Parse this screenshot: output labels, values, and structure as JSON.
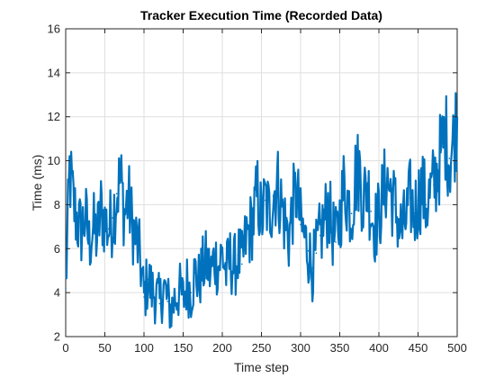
{
  "chart_data": {
    "type": "line",
    "title": "Tracker Execution Time (Recorded Data)",
    "xlabel": "Time step",
    "ylabel": "Time (ms)",
    "xlim": [
      0,
      500
    ],
    "ylim": [
      2,
      16
    ],
    "xticks": [
      0,
      50,
      100,
      150,
      200,
      250,
      300,
      350,
      400,
      450,
      500
    ],
    "yticks": [
      2,
      4,
      6,
      8,
      10,
      12,
      14,
      16
    ],
    "grid": true,
    "series": [
      {
        "color": "#0072BD",
        "x": [
          0,
          5,
          10,
          15,
          20,
          25,
          30,
          35,
          40,
          45,
          50,
          55,
          60,
          65,
          70,
          75,
          80,
          85,
          90,
          95,
          100,
          105,
          110,
          115,
          120,
          125,
          130,
          135,
          140,
          145,
          150,
          155,
          160,
          165,
          170,
          175,
          180,
          185,
          190,
          195,
          200,
          205,
          210,
          215,
          220,
          225,
          230,
          235,
          240,
          245,
          250,
          255,
          260,
          265,
          270,
          275,
          280,
          285,
          290,
          295,
          300,
          305,
          310,
          315,
          320,
          325,
          330,
          335,
          340,
          345,
          350,
          355,
          360,
          365,
          370,
          375,
          380,
          385,
          390,
          395,
          400,
          405,
          410,
          415,
          420,
          425,
          430,
          435,
          440,
          445,
          450,
          455,
          460,
          465,
          470,
          475,
          480,
          485,
          490,
          495,
          500
        ],
        "y": [
          4.2,
          9.5,
          8.0,
          7.2,
          6.8,
          7.5,
          6.2,
          7.0,
          6.5,
          7.8,
          7.2,
          6.9,
          7.4,
          8.5,
          9.2,
          7.6,
          8.3,
          7.1,
          6.4,
          5.6,
          3.8,
          4.6,
          4.1,
          3.9,
          3.5,
          4.3,
          3.6,
          3.2,
          3.8,
          4.1,
          3.7,
          4.4,
          4.0,
          4.9,
          4.5,
          5.1,
          5.4,
          4.8,
          5.6,
          5.2,
          5.8,
          4.9,
          5.5,
          5.1,
          5.7,
          5.3,
          6.4,
          6.8,
          7.4,
          8.5,
          7.3,
          8.2,
          7.6,
          8.4,
          9.0,
          8.1,
          7.2,
          6.5,
          7.9,
          8.6,
          7.1,
          6.5,
          5.9,
          5.1,
          5.8,
          6.6,
          7.2,
          7.9,
          6.9,
          6.3,
          7.4,
          8.8,
          8.3,
          7.6,
          9.3,
          9.6,
          8.1,
          9.0,
          7.7,
          7.0,
          7.5,
          8.4,
          9.2,
          8.6,
          8.0,
          7.2,
          6.8,
          7.4,
          8.3,
          7.6,
          8.2,
          8.8,
          8.0,
          8.4,
          8.9,
          9.6,
          10.5,
          11.2,
          10.1,
          10.8,
          12.0
        ]
      }
    ]
  }
}
